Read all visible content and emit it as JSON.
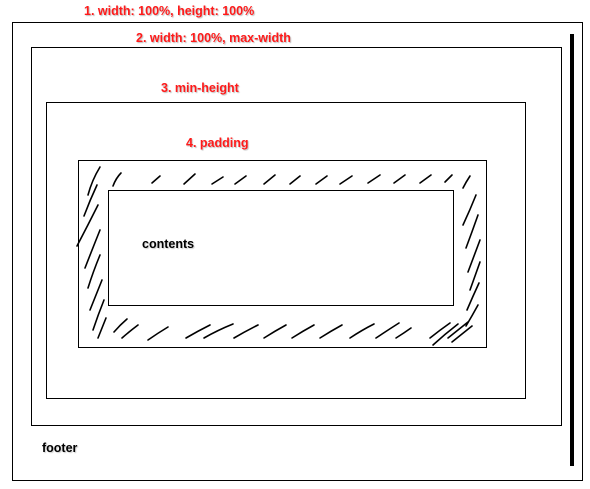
{
  "diagram": {
    "labels": {
      "outer": "1. width: 100%, height: 100%",
      "second": "2. width: 100%, max-width",
      "third": "3. min-height",
      "fourth": "4. padding",
      "contents": "contents",
      "footer": "footer"
    },
    "colors": {
      "label_red": "#ff1a1a",
      "line": "#000000",
      "background": "#ffffff"
    }
  }
}
